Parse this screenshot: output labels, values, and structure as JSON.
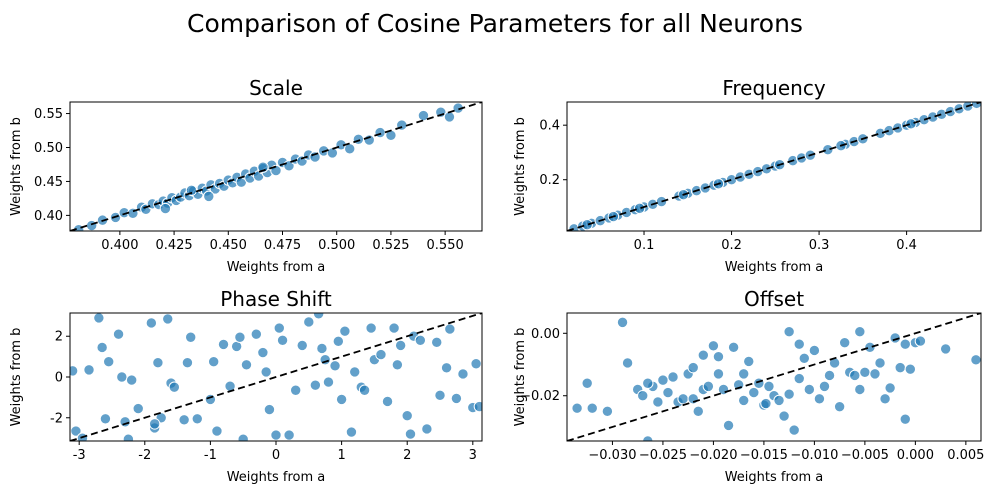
{
  "figure": {
    "suptitle": "Comparison of Cosine Parameters for all Neurons"
  },
  "chart_data": [
    {
      "id": "scale",
      "type": "scatter",
      "title": "Scale",
      "xlabel": "Weights from a",
      "ylabel": "Weights from b",
      "xlim": [
        0.377,
        0.567
      ],
      "ylim": [
        0.377,
        0.567
      ],
      "xticks": [
        0.4,
        0.425,
        0.45,
        0.475,
        0.5,
        0.525,
        0.55
      ],
      "xtick_labels": [
        "0.400",
        "0.425",
        "0.450",
        "0.475",
        "0.500",
        "0.525",
        "0.550"
      ],
      "yticks": [
        0.4,
        0.45,
        0.5,
        0.55
      ],
      "ytick_labels": [
        "0.40",
        "0.45",
        "0.50",
        "0.55"
      ],
      "reference_line": "y = x (dashed)",
      "x": [
        0.381,
        0.387,
        0.392,
        0.398,
        0.402,
        0.406,
        0.41,
        0.412,
        0.415,
        0.418,
        0.42,
        0.422,
        0.424,
        0.426,
        0.428,
        0.43,
        0.432,
        0.434,
        0.436,
        0.438,
        0.44,
        0.442,
        0.444,
        0.446,
        0.448,
        0.45,
        0.452,
        0.454,
        0.456,
        0.458,
        0.46,
        0.462,
        0.464,
        0.466,
        0.468,
        0.47,
        0.472,
        0.475,
        0.478,
        0.481,
        0.484,
        0.487,
        0.49,
        0.494,
        0.498,
        0.502,
        0.506,
        0.51,
        0.515,
        0.52,
        0.525,
        0.53,
        0.54,
        0.548,
        0.552,
        0.556,
        0.441,
        0.466,
        0.421,
        0.433
      ],
      "y": [
        0.379,
        0.385,
        0.393,
        0.397,
        0.404,
        0.403,
        0.412,
        0.409,
        0.417,
        0.416,
        0.421,
        0.418,
        0.426,
        0.422,
        0.427,
        0.433,
        0.429,
        0.436,
        0.431,
        0.44,
        0.436,
        0.445,
        0.439,
        0.447,
        0.443,
        0.452,
        0.448,
        0.456,
        0.449,
        0.461,
        0.455,
        0.465,
        0.458,
        0.469,
        0.463,
        0.474,
        0.466,
        0.478,
        0.473,
        0.483,
        0.48,
        0.489,
        0.486,
        0.495,
        0.492,
        0.504,
        0.498,
        0.512,
        0.511,
        0.522,
        0.518,
        0.533,
        0.547,
        0.552,
        0.545,
        0.558,
        0.428,
        0.471,
        0.41,
        0.437
      ]
    },
    {
      "id": "frequency",
      "type": "scatter",
      "title": "Frequency",
      "xlabel": "Weights from a",
      "ylabel": "Weights from b",
      "xlim": [
        0.012,
        0.485
      ],
      "ylim": [
        0.012,
        0.485
      ],
      "xticks": [
        0.1,
        0.2,
        0.3,
        0.4
      ],
      "xtick_labels": [
        "0.1",
        "0.2",
        "0.3",
        "0.4"
      ],
      "yticks": [
        0.2,
        0.4
      ],
      "ytick_labels": [
        "0.2",
        "0.4"
      ],
      "reference_line": "y = x (dashed)",
      "x": [
        0.02,
        0.03,
        0.04,
        0.05,
        0.06,
        0.07,
        0.08,
        0.09,
        0.1,
        0.11,
        0.12,
        0.14,
        0.15,
        0.16,
        0.17,
        0.18,
        0.19,
        0.2,
        0.21,
        0.22,
        0.23,
        0.24,
        0.25,
        0.27,
        0.28,
        0.29,
        0.31,
        0.33,
        0.34,
        0.35,
        0.37,
        0.38,
        0.39,
        0.4,
        0.41,
        0.42,
        0.43,
        0.44,
        0.45,
        0.46,
        0.47,
        0.48,
        0.035,
        0.065,
        0.095,
        0.145,
        0.185,
        0.255,
        0.325,
        0.405
      ],
      "y": [
        0.02,
        0.03,
        0.04,
        0.05,
        0.06,
        0.07,
        0.08,
        0.09,
        0.1,
        0.11,
        0.12,
        0.14,
        0.15,
        0.16,
        0.17,
        0.18,
        0.19,
        0.2,
        0.21,
        0.22,
        0.23,
        0.24,
        0.25,
        0.27,
        0.28,
        0.29,
        0.31,
        0.33,
        0.34,
        0.35,
        0.37,
        0.38,
        0.39,
        0.4,
        0.41,
        0.42,
        0.43,
        0.44,
        0.45,
        0.46,
        0.47,
        0.48,
        0.035,
        0.065,
        0.095,
        0.145,
        0.185,
        0.255,
        0.325,
        0.405
      ]
    },
    {
      "id": "phase_shift",
      "type": "scatter",
      "title": "Phase Shift",
      "xlabel": "Weights from a",
      "ylabel": "Weights from b",
      "xlim": [
        -3.14,
        3.14
      ],
      "ylim": [
        -3.14,
        3.14
      ],
      "xticks": [
        -3,
        -2,
        -1,
        0,
        1,
        2,
        3
      ],
      "xtick_labels": [
        "-3",
        "-2",
        "-1",
        "0",
        "1",
        "2",
        "3"
      ],
      "yticks": [
        -2,
        0,
        2
      ],
      "ytick_labels": [
        "-2",
        "0",
        "2"
      ],
      "reference_line": "y = x (dashed)",
      "x": [
        -3.1,
        -3.05,
        -2.95,
        -2.85,
        -2.7,
        -2.65,
        -2.6,
        -2.55,
        -2.4,
        -2.35,
        -2.3,
        -2.25,
        -2.2,
        -2.1,
        -1.9,
        -1.85,
        -1.8,
        -1.75,
        -1.65,
        -1.6,
        -1.55,
        -1.4,
        -1.35,
        -1.3,
        -1.2,
        -1.0,
        -0.95,
        -0.9,
        -0.8,
        -0.7,
        -0.6,
        -0.55,
        -0.5,
        -0.45,
        -0.3,
        -0.2,
        -0.1,
        0.0,
        0.05,
        0.1,
        0.2,
        0.3,
        0.4,
        0.5,
        0.6,
        0.65,
        0.7,
        0.75,
        0.8,
        0.9,
        1.0,
        1.05,
        1.15,
        1.2,
        1.3,
        1.35,
        1.45,
        1.5,
        1.6,
        1.7,
        1.8,
        1.85,
        1.9,
        2.0,
        2.05,
        2.1,
        2.2,
        2.3,
        2.45,
        2.5,
        2.65,
        2.75,
        2.85,
        3.0,
        3.05,
        3.1,
        -1.85,
        0.95,
        -0.15,
        2.6
      ],
      "y": [
        0.3,
        -2.65,
        -3.0,
        0.35,
        2.9,
        1.45,
        -2.05,
        0.75,
        2.1,
        0.0,
        -2.2,
        -3.05,
        -0.15,
        -1.55,
        2.65,
        -2.5,
        0.7,
        -2.0,
        2.85,
        -0.3,
        -0.5,
        -2.1,
        0.7,
        1.95,
        -2.05,
        -1.1,
        0.75,
        -2.65,
        1.6,
        -0.45,
        1.5,
        1.95,
        -3.05,
        0.6,
        2.1,
        1.2,
        -1.6,
        -2.85,
        2.4,
        1.8,
        -2.85,
        -0.65,
        1.55,
        2.7,
        -0.4,
        3.1,
        1.4,
        0.85,
        -0.25,
        0.55,
        -1.1,
        2.25,
        -2.7,
        0.25,
        -0.5,
        -0.65,
        2.4,
        0.85,
        1.1,
        -1.2,
        2.4,
        0.6,
        1.55,
        -1.9,
        -2.8,
        2.0,
        1.8,
        -2.55,
        1.7,
        -0.9,
        2.35,
        -1.05,
        0.15,
        -1.5,
        0.65,
        -1.45,
        -2.3,
        1.75,
        0.25,
        0.45
      ]
    },
    {
      "id": "offset",
      "type": "scatter",
      "title": "Offset",
      "xlabel": "Weights from a",
      "ylabel": "Weights from b",
      "xlim": [
        -0.0345,
        0.0065
      ],
      "ylim": [
        -0.0345,
        0.0065
      ],
      "xticks": [
        -0.03,
        -0.025,
        -0.02,
        -0.015,
        -0.01,
        -0.005,
        0.0,
        0.005
      ],
      "xtick_labels": [
        "−0.030",
        "−0.025",
        "−0.020",
        "−0.015",
        "−0.010",
        "−0.005",
        "0.000",
        "0.005"
      ],
      "yticks": [
        -0.02,
        0.0
      ],
      "ytick_labels": [
        "−0.02",
        "0.00"
      ],
      "reference_line": "y = x (dashed)",
      "x": [
        -0.0335,
        -0.032,
        -0.0325,
        -0.0305,
        -0.0275,
        -0.0285,
        -0.027,
        -0.0265,
        -0.026,
        -0.0255,
        -0.025,
        -0.0245,
        -0.024,
        -0.0235,
        -0.023,
        -0.0225,
        -0.022,
        -0.0215,
        -0.021,
        -0.0205,
        -0.02,
        -0.0195,
        -0.019,
        -0.0185,
        -0.018,
        -0.0175,
        -0.017,
        -0.0165,
        -0.016,
        -0.0155,
        -0.015,
        -0.0145,
        -0.014,
        -0.0135,
        -0.013,
        -0.0125,
        -0.012,
        -0.0115,
        -0.011,
        -0.0105,
        -0.01,
        -0.0095,
        -0.009,
        -0.0085,
        -0.008,
        -0.0075,
        -0.007,
        -0.0065,
        -0.006,
        -0.0055,
        -0.005,
        -0.0045,
        -0.004,
        -0.0035,
        -0.003,
        -0.0025,
        -0.002,
        -0.0015,
        -0.001,
        -0.0005,
        0.0,
        0.0005,
        0.003,
        0.006,
        -0.029,
        -0.0265,
        -0.022,
        -0.0195,
        -0.0125,
        -0.0115,
        -0.0055,
        -0.001,
        -0.017,
        -0.021,
        -0.0148
      ],
      "y": [
        -0.024,
        -0.024,
        -0.016,
        -0.025,
        -0.018,
        -0.0095,
        -0.02,
        -0.0345,
        -0.017,
        -0.022,
        -0.015,
        -0.019,
        -0.014,
        -0.022,
        -0.021,
        -0.013,
        -0.011,
        -0.025,
        -0.018,
        -0.017,
        -0.004,
        -0.013,
        -0.018,
        -0.0295,
        -0.0045,
        -0.0165,
        -0.0215,
        -0.009,
        -0.019,
        -0.016,
        -0.023,
        -0.017,
        -0.02,
        -0.0215,
        -0.0265,
        -0.0195,
        -0.031,
        -0.0145,
        -0.008,
        -0.018,
        -0.0055,
        -0.021,
        -0.017,
        -0.0135,
        -0.0095,
        -0.0235,
        -0.003,
        -0.0125,
        -0.0135,
        -0.018,
        -0.0125,
        -0.0045,
        -0.013,
        -0.0095,
        -0.021,
        -0.0175,
        -0.0015,
        -0.011,
        -0.0275,
        -0.0115,
        -0.003,
        -0.0025,
        -0.005,
        -0.0085,
        0.0035,
        -0.016,
        -0.021,
        -0.0075,
        0.0005,
        -0.0035,
        0.0005,
        -0.0035,
        -0.013,
        -0.007,
        -0.0225
      ]
    }
  ]
}
